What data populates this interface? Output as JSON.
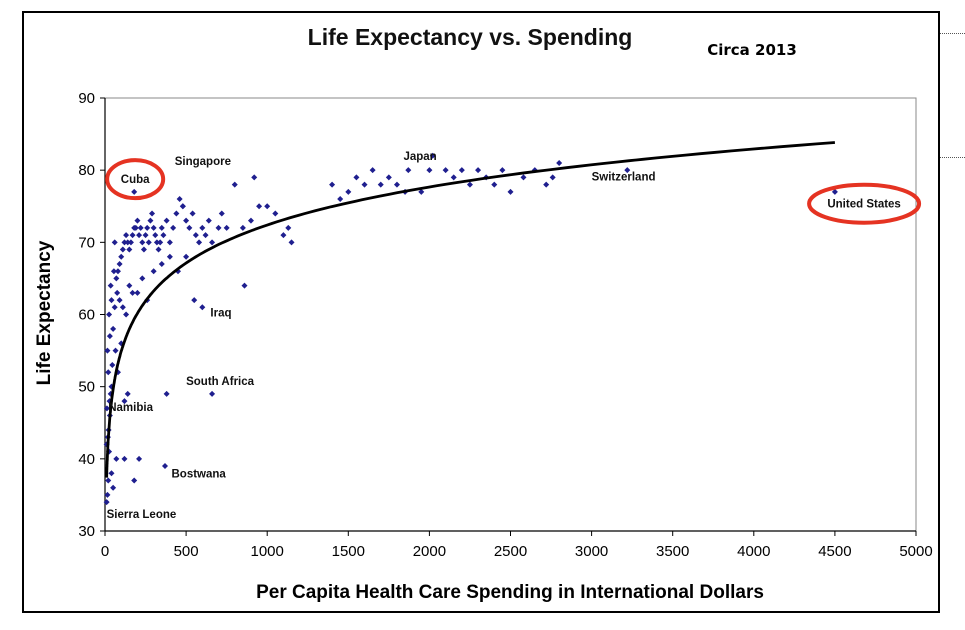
{
  "chart_data": {
    "type": "scatter",
    "title": "Life Expectancy vs. Spending",
    "subtitle": "Circa 2013",
    "xlabel": "Per Capita Health Care Spending in International Dollars",
    "ylabel": "Life Expectancy",
    "xlim": [
      0,
      5000
    ],
    "ylim": [
      30,
      90
    ],
    "xticks": [
      0,
      500,
      1000,
      1500,
      2000,
      2500,
      3000,
      3500,
      4000,
      4500,
      5000
    ],
    "yticks": [
      30,
      40,
      50,
      60,
      70,
      80,
      90
    ],
    "grid": false,
    "marker_color": "#1f1f8f",
    "trendline": {
      "type": "logarithmic",
      "a": 7.6,
      "b": 19.9,
      "x_range": [
        10,
        4500
      ],
      "color": "#000000"
    },
    "points": [
      [
        10,
        34
      ],
      [
        15,
        35
      ],
      [
        20,
        37
      ],
      [
        25,
        41
      ],
      [
        10,
        42
      ],
      [
        18,
        43
      ],
      [
        22,
        44
      ],
      [
        30,
        46
      ],
      [
        12,
        47
      ],
      [
        28,
        48
      ],
      [
        35,
        49
      ],
      [
        40,
        50
      ],
      [
        20,
        52
      ],
      [
        45,
        53
      ],
      [
        15,
        55
      ],
      [
        30,
        57
      ],
      [
        50,
        58
      ],
      [
        25,
        60
      ],
      [
        60,
        61
      ],
      [
        40,
        62
      ],
      [
        35,
        64
      ],
      [
        70,
        65
      ],
      [
        55,
        66
      ],
      [
        80,
        66
      ],
      [
        90,
        67
      ],
      [
        100,
        68
      ],
      [
        110,
        69
      ],
      [
        120,
        70
      ],
      [
        60,
        70
      ],
      [
        130,
        71
      ],
      [
        140,
        70
      ],
      [
        150,
        69
      ],
      [
        160,
        70
      ],
      [
        170,
        71
      ],
      [
        180,
        72
      ],
      [
        190,
        72
      ],
      [
        200,
        73
      ],
      [
        210,
        71
      ],
      [
        220,
        72
      ],
      [
        230,
        70
      ],
      [
        240,
        69
      ],
      [
        250,
        71
      ],
      [
        260,
        72
      ],
      [
        270,
        70
      ],
      [
        280,
        73
      ],
      [
        290,
        74
      ],
      [
        300,
        72
      ],
      [
        310,
        71
      ],
      [
        320,
        70
      ],
      [
        330,
        69
      ],
      [
        340,
        70
      ],
      [
        350,
        72
      ],
      [
        360,
        71
      ],
      [
        380,
        73
      ],
      [
        400,
        70
      ],
      [
        420,
        72
      ],
      [
        440,
        74
      ],
      [
        460,
        76
      ],
      [
        480,
        75
      ],
      [
        500,
        73
      ],
      [
        520,
        72
      ],
      [
        540,
        74
      ],
      [
        560,
        71
      ],
      [
        580,
        70
      ],
      [
        600,
        72
      ],
      [
        620,
        71
      ],
      [
        640,
        73
      ],
      [
        660,
        70
      ],
      [
        700,
        72
      ],
      [
        720,
        74
      ],
      [
        750,
        72
      ],
      [
        800,
        78
      ],
      [
        850,
        72
      ],
      [
        900,
        73
      ],
      [
        950,
        75
      ],
      [
        1000,
        75
      ],
      [
        1050,
        74
      ],
      [
        1100,
        71
      ],
      [
        1130,
        72
      ],
      [
        1150,
        70
      ],
      [
        75,
        63
      ],
      [
        90,
        62
      ],
      [
        110,
        61
      ],
      [
        130,
        60
      ],
      [
        150,
        64
      ],
      [
        170,
        63
      ],
      [
        200,
        63
      ],
      [
        230,
        65
      ],
      [
        260,
        62
      ],
      [
        300,
        66
      ],
      [
        350,
        67
      ],
      [
        400,
        68
      ],
      [
        450,
        66
      ],
      [
        500,
        68
      ],
      [
        550,
        62
      ],
      [
        600,
        61
      ],
      [
        860,
        64
      ],
      [
        65,
        55
      ],
      [
        80,
        52
      ],
      [
        100,
        56
      ],
      [
        120,
        48
      ],
      [
        140,
        49
      ],
      [
        380,
        49
      ],
      [
        660,
        49
      ],
      [
        120,
        40
      ],
      [
        210,
        40
      ],
      [
        180,
        37
      ],
      [
        370,
        39
      ],
      [
        70,
        40
      ],
      [
        50,
        36
      ],
      [
        40,
        38
      ],
      [
        180,
        77
      ],
      [
        480,
        75
      ],
      [
        920,
        79
      ],
      [
        1400,
        78
      ],
      [
        1450,
        76
      ],
      [
        1500,
        77
      ],
      [
        1550,
        79
      ],
      [
        1600,
        78
      ],
      [
        1650,
        80
      ],
      [
        1700,
        78
      ],
      [
        1750,
        79
      ],
      [
        1800,
        78
      ],
      [
        1850,
        77
      ],
      [
        1870,
        80
      ],
      [
        1950,
        77
      ],
      [
        2000,
        80
      ],
      [
        2020,
        82
      ],
      [
        2100,
        80
      ],
      [
        2150,
        79
      ],
      [
        2200,
        80
      ],
      [
        2250,
        78
      ],
      [
        2300,
        80
      ],
      [
        2350,
        79
      ],
      [
        2400,
        78
      ],
      [
        2450,
        80
      ],
      [
        2500,
        77
      ],
      [
        2580,
        79
      ],
      [
        2650,
        80
      ],
      [
        2720,
        78
      ],
      [
        2760,
        79
      ],
      [
        2800,
        81
      ],
      [
        3220,
        80
      ],
      [
        4500,
        77
      ]
    ],
    "annotations": [
      {
        "label": "Cuba",
        "x": 186,
        "y": 78.2,
        "circled": true
      },
      {
        "label": "Singapore",
        "x": 430,
        "y": 80.7
      },
      {
        "label": "Japan",
        "x": 1840,
        "y": 81.4
      },
      {
        "label": "Switzerland",
        "x": 3000,
        "y": 78.6
      },
      {
        "label": "United States",
        "x": 4680,
        "y": 74.8,
        "circled": true
      },
      {
        "label": "Iraq",
        "x": 650,
        "y": 59.7
      },
      {
        "label": "South Africa",
        "x": 500,
        "y": 50.2
      },
      {
        "label": "Namibia",
        "x": 20,
        "y": 46.6
      },
      {
        "label": "Bostwana",
        "x": 410,
        "y": 37.4
      },
      {
        "label": "Sierra Leone",
        "x": 10,
        "y": 31.8
      }
    ],
    "highlight_color": "#e53322"
  }
}
